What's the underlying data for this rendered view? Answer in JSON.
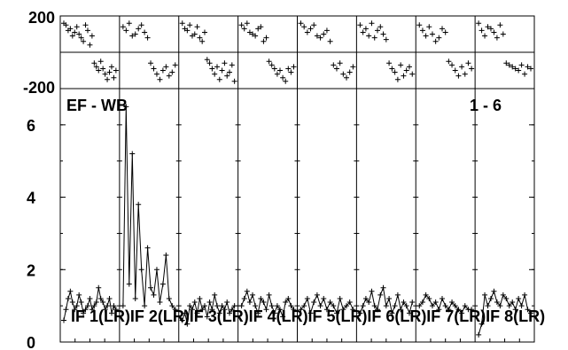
{
  "chart_data": {
    "type": "scatter",
    "title": "",
    "baseline_label": "EF - WB",
    "range_label": "1 - 6",
    "phase_axis": {
      "ylim": [
        -200,
        200
      ],
      "tick_labels": [
        "200",
        "-200"
      ]
    },
    "amp_axis": {
      "ylim": [
        0,
        7
      ],
      "tick_labels": [
        "0",
        "2",
        "4",
        "6"
      ],
      "tick_values": [
        0,
        2,
        4,
        6
      ]
    },
    "panels": [
      {
        "name": "IF 1(LR)",
        "amplitude": [
          0.6,
          0.9,
          1.2,
          1.4,
          1.1,
          0.9,
          1.0,
          1.3,
          1.1,
          0.8,
          0.9,
          1.0,
          1.2,
          0.9,
          1.0,
          1.1,
          1.5,
          1.2,
          1.1,
          0.9,
          1.0,
          1.2,
          0.8,
          1.0,
          0.9
        ],
        "phase": [
          160,
          150,
          120,
          130,
          90,
          110,
          140,
          100,
          80,
          60,
          150,
          120,
          40,
          90,
          -60,
          -80,
          -100,
          -50,
          -90,
          -120,
          -150,
          -110,
          -80,
          -140,
          -100
        ]
      },
      {
        "name": "IF 2(LR)",
        "amplitude": [
          1.0,
          6.5,
          1.6,
          5.2,
          1.2,
          3.8,
          2.0,
          1.0,
          2.6,
          1.5,
          1.3,
          2.0,
          1.1,
          1.6,
          2.4,
          1.2,
          1.0,
          0.9
        ],
        "phase": [
          140,
          120,
          160,
          90,
          100,
          130,
          150,
          110,
          80,
          -60,
          -90,
          -120,
          -150,
          -100,
          -80,
          -130,
          -110,
          -70
        ]
      },
      {
        "name": "IF 3(LR)",
        "amplitude": [
          0.6,
          0.8,
          0.5,
          1.0,
          0.9,
          1.1,
          0.8,
          1.2,
          0.9,
          1.0,
          0.7,
          1.1,
          0.9,
          1.3,
          1.0,
          0.8,
          1.0,
          0.9,
          1.1,
          0.8,
          0.9,
          1.0
        ],
        "phase": [
          160,
          130,
          120,
          150,
          90,
          100,
          140,
          80,
          60,
          110,
          -40,
          -60,
          -90,
          -120,
          -80,
          -150,
          -100,
          -60,
          -130,
          -110,
          -70,
          -160
        ]
      },
      {
        "name": "IF 4(LR)",
        "amplitude": [
          1.0,
          1.2,
          1.4,
          1.1,
          1.3,
          1.0,
          0.8,
          1.2,
          1.1,
          0.9,
          1.3,
          1.0,
          0.8,
          1.0,
          0.9,
          0.7,
          1.1,
          1.2,
          1.0,
          0.9
        ],
        "phase": [
          150,
          130,
          160,
          110,
          100,
          90,
          130,
          140,
          60,
          80,
          -50,
          -70,
          -90,
          -120,
          -100,
          -140,
          -160,
          -90,
          -110,
          -80
        ]
      },
      {
        "name": "IF 5(LR)",
        "amplitude": [
          0.9,
          1.0,
          1.2,
          0.8,
          1.1,
          1.3,
          1.0,
          1.2,
          0.9,
          1.1,
          1.0,
          0.8,
          1.2,
          0.9,
          1.0,
          1.1,
          0.9
        ],
        "phase": [
          160,
          140,
          110,
          130,
          150,
          90,
          80,
          100,
          120,
          60,
          -70,
          -90,
          -60,
          -120,
          -140,
          -110,
          -80
        ]
      },
      {
        "name": "IF 6(LR)",
        "amplitude": [
          0.8,
          1.0,
          1.2,
          1.1,
          1.4,
          1.0,
          0.9,
          1.3,
          1.5,
          1.0,
          1.2,
          0.8,
          1.0,
          1.3,
          0.9,
          1.1,
          1.0,
          0.8,
          1.1
        ],
        "phase": [
          150,
          110,
          130,
          90,
          160,
          80,
          120,
          140,
          100,
          70,
          -60,
          -90,
          -110,
          -150,
          -70,
          -130,
          -100,
          -80,
          -120
        ]
      },
      {
        "name": "IF 7(LR)",
        "amplitude": [
          1.0,
          1.1,
          1.3,
          1.2,
          1.0,
          1.1,
          0.9,
          1.2,
          1.0,
          0.9,
          1.1,
          1.0,
          0.9,
          0.8,
          1.0,
          0.9,
          0.9
        ],
        "phase": [
          150,
          120,
          90,
          140,
          100,
          60,
          80,
          130,
          110,
          -50,
          -70,
          -100,
          -130,
          -80,
          -120,
          -60,
          -90
        ]
      },
      {
        "name": "IF 8(LR)",
        "amplitude": [
          0.2,
          0.5,
          1.3,
          1.0,
          1.2,
          1.4,
          1.1,
          1.0,
          1.3,
          1.2,
          1.0,
          1.1,
          0.9,
          1.2,
          1.0,
          1.3,
          0.9,
          0.8
        ],
        "phase": [
          160,
          120,
          90,
          140,
          130,
          110,
          80,
          150,
          100,
          -60,
          -70,
          -80,
          -90,
          -100,
          -70,
          -120,
          -80,
          -90
        ]
      }
    ]
  }
}
